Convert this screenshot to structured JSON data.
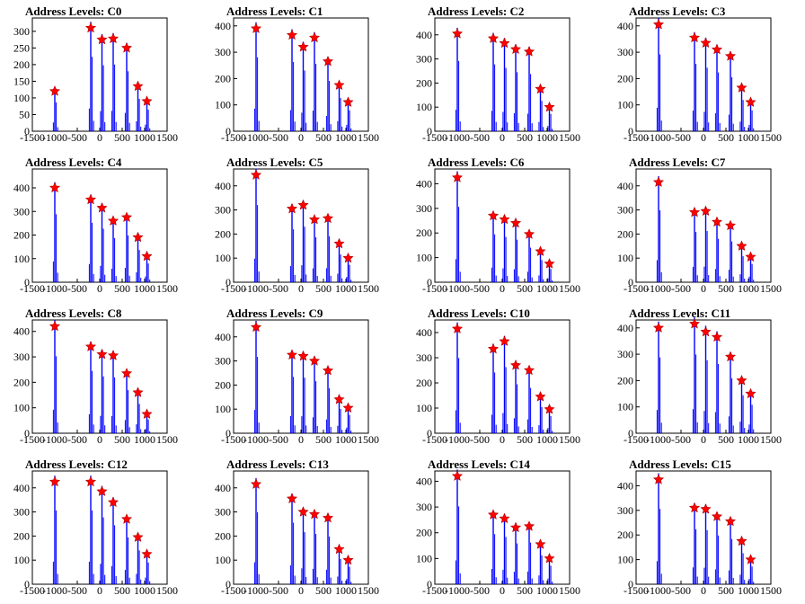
{
  "figure": {
    "background": "#ffffff",
    "bar_color": "#0000ff",
    "marker_color": "#ff0000",
    "marker_shape": "star"
  },
  "chart_data": [
    {
      "type": "histogram",
      "title": "Address Levels: C0",
      "xlim": [
        -1500,
        1500
      ],
      "ylim": [
        0,
        340
      ],
      "xticks": [
        -1500,
        -1000,
        -500,
        0,
        500,
        1000,
        1500
      ],
      "yticks": [
        0,
        50,
        100,
        150,
        200,
        250,
        300
      ],
      "peaks_x": [
        -1000,
        -200,
        50,
        300,
        600,
        850,
        1050
      ],
      "peaks_y": [
        120,
        310,
        275,
        278,
        250,
        135,
        90
      ]
    },
    {
      "type": "histogram",
      "title": "Address Levels: C1",
      "xlim": [
        -1500,
        1500
      ],
      "ylim": [
        0,
        430
      ],
      "xticks": [
        -1500,
        -1000,
        -500,
        0,
        500,
        1000,
        1500
      ],
      "yticks": [
        0,
        100,
        200,
        300,
        400
      ],
      "peaks_x": [
        -1000,
        -200,
        50,
        300,
        600,
        850,
        1050
      ],
      "peaks_y": [
        390,
        365,
        320,
        355,
        265,
        175,
        110
      ]
    },
    {
      "type": "histogram",
      "title": "Address Levels: C2",
      "xlim": [
        -1500,
        1500
      ],
      "ylim": [
        0,
        470
      ],
      "xticks": [
        -1500,
        -1000,
        -500,
        0,
        500,
        1000,
        1500
      ],
      "yticks": [
        0,
        100,
        200,
        300,
        400
      ],
      "peaks_x": [
        -1000,
        -200,
        50,
        300,
        600,
        850,
        1050
      ],
      "peaks_y": [
        405,
        385,
        365,
        340,
        330,
        175,
        100
      ]
    },
    {
      "type": "histogram",
      "title": "Address Levels: C3",
      "xlim": [
        -1500,
        1500
      ],
      "ylim": [
        0,
        430
      ],
      "xticks": [
        -1500,
        -1000,
        -500,
        0,
        500,
        1000,
        1500
      ],
      "yticks": [
        0,
        100,
        200,
        300,
        400
      ],
      "peaks_x": [
        -1000,
        -200,
        50,
        300,
        600,
        850,
        1050
      ],
      "peaks_y": [
        405,
        355,
        335,
        310,
        285,
        165,
        110
      ]
    },
    {
      "type": "histogram",
      "title": "Address Levels: C4",
      "xlim": [
        -1500,
        1500
      ],
      "ylim": [
        0,
        480
      ],
      "xticks": [
        -1500,
        -1000,
        -500,
        0,
        500,
        1000,
        1500
      ],
      "yticks": [
        0,
        100,
        200,
        300,
        400
      ],
      "peaks_x": [
        -1000,
        -200,
        50,
        300,
        600,
        850,
        1050
      ],
      "peaks_y": [
        400,
        350,
        315,
        260,
        275,
        190,
        110
      ]
    },
    {
      "type": "histogram",
      "title": "Address Levels: C5",
      "xlim": [
        -1500,
        1500
      ],
      "ylim": [
        0,
        470
      ],
      "xticks": [
        -1500,
        -1000,
        -500,
        0,
        500,
        1000,
        1500
      ],
      "yticks": [
        0,
        100,
        200,
        300,
        400
      ],
      "peaks_x": [
        -1000,
        -200,
        50,
        300,
        600,
        850,
        1050
      ],
      "peaks_y": [
        445,
        305,
        320,
        260,
        265,
        160,
        100
      ]
    },
    {
      "type": "histogram",
      "title": "Address Levels: C6",
      "xlim": [
        -1500,
        1500
      ],
      "ylim": [
        0,
        460
      ],
      "xticks": [
        -1500,
        -1000,
        -500,
        0,
        500,
        1000,
        1500
      ],
      "yticks": [
        0,
        100,
        200,
        300,
        400
      ],
      "peaks_x": [
        -1000,
        -200,
        50,
        300,
        600,
        850,
        1050
      ],
      "peaks_y": [
        425,
        270,
        255,
        240,
        195,
        125,
        75
      ]
    },
    {
      "type": "histogram",
      "title": "Address Levels: C7",
      "xlim": [
        -1500,
        1500
      ],
      "ylim": [
        0,
        470
      ],
      "xticks": [
        -1500,
        -1000,
        -500,
        0,
        500,
        1000,
        1500
      ],
      "yticks": [
        0,
        100,
        200,
        300,
        400
      ],
      "peaks_x": [
        -1000,
        -200,
        50,
        300,
        600,
        850,
        1050
      ],
      "peaks_y": [
        415,
        290,
        295,
        250,
        235,
        150,
        105
      ]
    },
    {
      "type": "histogram",
      "title": "Address Levels: C8",
      "xlim": [
        -1500,
        1500
      ],
      "ylim": [
        0,
        445
      ],
      "xticks": [
        -1500,
        -1000,
        -500,
        0,
        500,
        1000,
        1500
      ],
      "yticks": [
        0,
        100,
        200,
        300,
        400
      ],
      "peaks_x": [
        -1000,
        -200,
        50,
        300,
        600,
        850,
        1050
      ],
      "peaks_y": [
        420,
        340,
        310,
        305,
        235,
        160,
        75
      ]
    },
    {
      "type": "histogram",
      "title": "Address Levels: C9",
      "xlim": [
        -1500,
        1500
      ],
      "ylim": [
        0,
        470
      ],
      "xticks": [
        -1500,
        -1000,
        -500,
        0,
        500,
        1000,
        1500
      ],
      "yticks": [
        0,
        100,
        200,
        300,
        400
      ],
      "peaks_x": [
        -1000,
        -200,
        50,
        300,
        600,
        850,
        1050
      ],
      "peaks_y": [
        440,
        325,
        320,
        300,
        260,
        140,
        105
      ]
    },
    {
      "type": "histogram",
      "title": "Address Levels: C10",
      "xlim": [
        -1500,
        1500
      ],
      "ylim": [
        0,
        450
      ],
      "xticks": [
        -1500,
        -1000,
        -500,
        0,
        500,
        1000,
        1500
      ],
      "yticks": [
        0,
        100,
        200,
        300,
        400
      ],
      "peaks_x": [
        -1000,
        -200,
        50,
        300,
        600,
        850,
        1050
      ],
      "peaks_y": [
        415,
        335,
        365,
        270,
        250,
        145,
        95
      ]
    },
    {
      "type": "histogram",
      "title": "Address Levels: C11",
      "xlim": [
        -1500,
        1500
      ],
      "ylim": [
        0,
        430
      ],
      "xticks": [
        -1500,
        -1000,
        -500,
        0,
        500,
        1000,
        1500
      ],
      "yticks": [
        0,
        100,
        200,
        300,
        400
      ],
      "peaks_x": [
        -1000,
        -200,
        50,
        300,
        600,
        850,
        1050
      ],
      "peaks_y": [
        400,
        415,
        385,
        365,
        290,
        200,
        150
      ]
    },
    {
      "type": "histogram",
      "title": "Address Levels: C12",
      "xlim": [
        -1500,
        1500
      ],
      "ylim": [
        0,
        470
      ],
      "xticks": [
        -1500,
        -1000,
        -500,
        0,
        500,
        1000,
        1500
      ],
      "yticks": [
        0,
        100,
        200,
        300,
        400
      ],
      "peaks_x": [
        -1000,
        -200,
        50,
        300,
        600,
        850,
        1050
      ],
      "peaks_y": [
        425,
        425,
        385,
        340,
        270,
        195,
        125
      ]
    },
    {
      "type": "histogram",
      "title": "Address Levels: C13",
      "xlim": [
        -1500,
        1500
      ],
      "ylim": [
        0,
        470
      ],
      "xticks": [
        -1500,
        -1000,
        -500,
        0,
        500,
        1000,
        1500
      ],
      "yticks": [
        0,
        100,
        200,
        300,
        400
      ],
      "peaks_x": [
        -1000,
        -200,
        50,
        300,
        600,
        850,
        1050
      ],
      "peaks_y": [
        415,
        355,
        300,
        290,
        275,
        145,
        100
      ]
    },
    {
      "type": "histogram",
      "title": "Address Levels: C14",
      "xlim": [
        -1500,
        1500
      ],
      "ylim": [
        0,
        440
      ],
      "xticks": [
        -1500,
        -1000,
        -500,
        0,
        500,
        1000,
        1500
      ],
      "yticks": [
        0,
        100,
        200,
        300,
        400
      ],
      "peaks_x": [
        -1000,
        -200,
        50,
        300,
        600,
        850,
        1050
      ],
      "peaks_y": [
        420,
        270,
        255,
        220,
        225,
        155,
        100
      ]
    },
    {
      "type": "histogram",
      "title": "Address Levels: C15",
      "xlim": [
        -1500,
        1500
      ],
      "ylim": [
        0,
        460
      ],
      "xticks": [
        -1500,
        -1000,
        -500,
        0,
        500,
        1000,
        1500
      ],
      "yticks": [
        0,
        100,
        200,
        300,
        400
      ],
      "peaks_x": [
        -1000,
        -200,
        50,
        300,
        600,
        850,
        1050
      ],
      "peaks_y": [
        425,
        310,
        305,
        275,
        255,
        175,
        100
      ]
    }
  ]
}
